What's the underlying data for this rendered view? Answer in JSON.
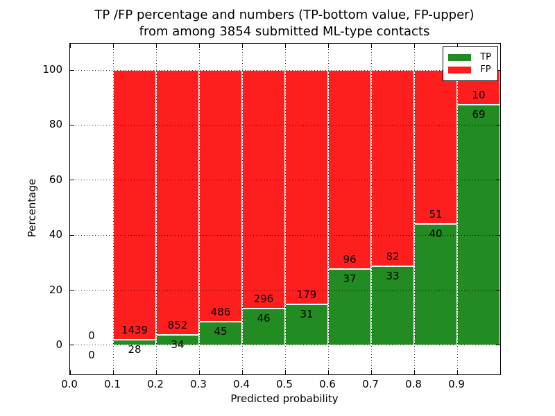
{
  "chart_data": {
    "type": "bar",
    "stacked": true,
    "title": "TP /FP percentage and numbers (TP-bottom value, FP-upper)",
    "subtitle": "from among 3854 submitted ML-type contacts",
    "xlabel": "Predicted probability",
    "ylabel": "Percentage",
    "total_submitted": 3854,
    "xlim": [
      0.0,
      1.0
    ],
    "ylim": [
      -10.6,
      109.6
    ],
    "grid": true,
    "grid_style": "dotted",
    "legend_position": "upper right",
    "legend": [
      {
        "label": "TP",
        "color": "#228b22"
      },
      {
        "label": "FP",
        "color": "#ff1e1e"
      }
    ],
    "colors": {
      "tp": "#228b22",
      "fp": "#ff1e1e",
      "bar_edge": "#ffffff",
      "text": "#000000"
    },
    "xticks": [
      "0.0",
      "0.1",
      "0.2",
      "0.3",
      "0.4",
      "0.5",
      "0.6",
      "0.7",
      "0.8",
      "0.9"
    ],
    "yticks": [
      0,
      20,
      40,
      60,
      80,
      100
    ],
    "bins": [
      {
        "range": [
          0.0,
          0.1
        ],
        "tp": 0,
        "fp": 0,
        "tp_pct": 0,
        "fp_pct": 0
      },
      {
        "range": [
          0.1,
          0.2
        ],
        "tp": 28,
        "fp": 1439,
        "tp_pct": 1.91,
        "fp_pct": 98.09
      },
      {
        "range": [
          0.2,
          0.3
        ],
        "tp": 34,
        "fp": 852,
        "tp_pct": 3.84,
        "fp_pct": 96.16
      },
      {
        "range": [
          0.3,
          0.4
        ],
        "tp": 45,
        "fp": 486,
        "tp_pct": 8.47,
        "fp_pct": 91.53
      },
      {
        "range": [
          0.4,
          0.5
        ],
        "tp": 46,
        "fp": 296,
        "tp_pct": 13.45,
        "fp_pct": 86.55
      },
      {
        "range": [
          0.5,
          0.6
        ],
        "tp": 31,
        "fp": 179,
        "tp_pct": 14.76,
        "fp_pct": 85.24
      },
      {
        "range": [
          0.6,
          0.7
        ],
        "tp": 37,
        "fp": 96,
        "tp_pct": 27.82,
        "fp_pct": 72.18
      },
      {
        "range": [
          0.7,
          0.8
        ],
        "tp": 33,
        "fp": 82,
        "tp_pct": 28.7,
        "fp_pct": 71.3
      },
      {
        "range": [
          0.8,
          0.9
        ],
        "tp": 40,
        "fp": 51,
        "tp_pct": 43.96,
        "fp_pct": 56.04
      },
      {
        "range": [
          0.9,
          1.0
        ],
        "tp": 69,
        "fp": 10,
        "tp_pct": 87.34,
        "fp_pct": 12.66
      }
    ]
  }
}
